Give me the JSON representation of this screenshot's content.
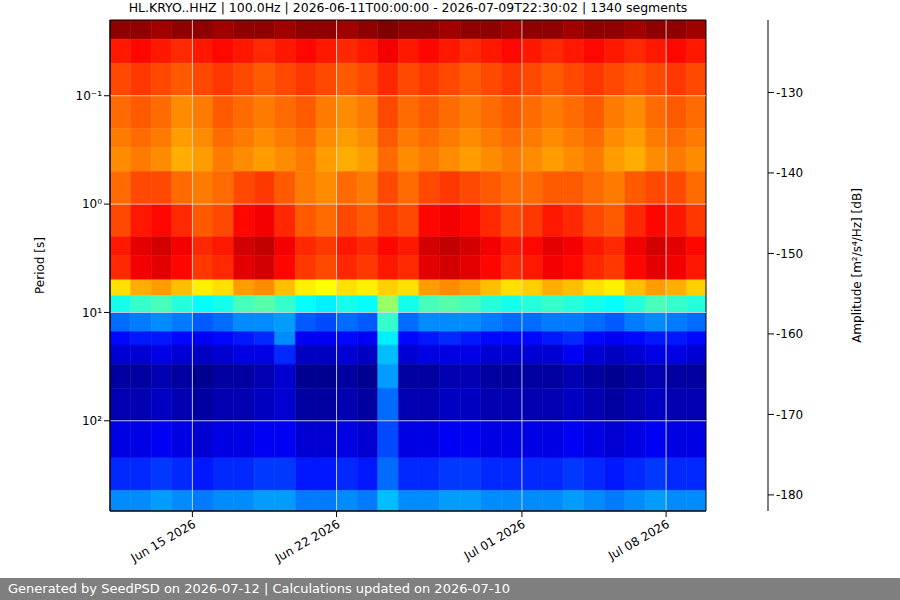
{
  "chart_data": {
    "type": "heatmap",
    "title": "HL.KRYO..HHZ | 100.0Hz | 2026-06-11T00:00:00 - 2026-07-09T22:30:02 | 1340 segments",
    "footer": "Generated by SeedPSD on 2026-07-12 | Calculations updated on 2026-07-10",
    "y_label": "Period [s]",
    "x": [
      "2026-06-11",
      "2026-06-12",
      "2026-06-13",
      "2026-06-14",
      "2026-06-15",
      "2026-06-16",
      "2026-06-17",
      "2026-06-18",
      "2026-06-19",
      "2026-06-20",
      "2026-06-21",
      "2026-06-22",
      "2026-06-23",
      "2026-06-24",
      "2026-06-25",
      "2026-06-26",
      "2026-06-27",
      "2026-06-28",
      "2026-06-29",
      "2026-06-30",
      "2026-07-01",
      "2026-07-02",
      "2026-07-03",
      "2026-07-04",
      "2026-07-05",
      "2026-07-06",
      "2026-07-07",
      "2026-07-08",
      "2026-07-09"
    ],
    "xlim": [
      "2026-06-11T00:00:00",
      "2026-07-09T22:30:02"
    ],
    "xticks": [
      {
        "value": "2026-06-15",
        "label": "Jun 15 2026"
      },
      {
        "value": "2026-06-22",
        "label": "Jun 22 2026"
      },
      {
        "value": "2026-07-01",
        "label": "Jul 01 2026"
      },
      {
        "value": "2026-07-08",
        "label": "Jul 08 2026"
      }
    ],
    "ylim": [
      0.02,
      680
    ],
    "yticks": [
      {
        "value": 0.1,
        "label": "10⁻¹"
      },
      {
        "value": 1,
        "label": "10⁰"
      },
      {
        "value": 10,
        "label": "10¹"
      },
      {
        "value": 100,
        "label": "10²"
      }
    ],
    "log": "y",
    "grid": true,
    "period_bins": [
      0.02,
      0.03,
      0.05,
      0.1,
      0.2,
      0.3,
      0.5,
      1,
      2,
      3,
      5,
      7,
      10,
      15,
      20,
      30,
      50,
      100,
      220,
      440,
      680
    ],
    "values": [
      [
        -122,
        -122,
        -123,
        -122,
        -122,
        -123,
        -122,
        -122,
        -123,
        -122,
        -122,
        -123,
        -122,
        -121,
        -122,
        -122,
        -123,
        -122,
        -122,
        -123,
        -122,
        -122,
        -123,
        -122,
        -122,
        -123,
        -122,
        -122,
        -123
      ],
      [
        -130,
        -129,
        -130,
        -131,
        -130,
        -129,
        -130,
        -131,
        -130,
        -129,
        -130,
        -131,
        -130,
        -128,
        -130,
        -129,
        -130,
        -131,
        -130,
        -129,
        -130,
        -131,
        -130,
        -129,
        -130,
        -131,
        -130,
        -129,
        -130
      ],
      [
        -133,
        -132,
        -133,
        -134,
        -133,
        -132,
        -133,
        -134,
        -133,
        -132,
        -133,
        -134,
        -133,
        -131,
        -133,
        -132,
        -133,
        -134,
        -133,
        -132,
        -133,
        -134,
        -133,
        -132,
        -133,
        -134,
        -133,
        -132,
        -133
      ],
      [
        -135,
        -134,
        -135,
        -137,
        -136,
        -134,
        -135,
        -136,
        -135,
        -134,
        -136,
        -137,
        -136,
        -133,
        -135,
        -134,
        -135,
        -136,
        -135,
        -134,
        -135,
        -136,
        -135,
        -134,
        -136,
        -137,
        -135,
        -134,
        -135
      ],
      [
        -136,
        -135,
        -136,
        -138,
        -137,
        -135,
        -136,
        -137,
        -136,
        -135,
        -137,
        -138,
        -137,
        -134,
        -136,
        -135,
        -136,
        -137,
        -136,
        -135,
        -136,
        -137,
        -136,
        -135,
        -137,
        -138,
        -136,
        -135,
        -136
      ],
      [
        -137,
        -136,
        -137,
        -139,
        -138,
        -136,
        -137,
        -138,
        -137,
        -136,
        -138,
        -139,
        -138,
        -135,
        -137,
        -136,
        -137,
        -138,
        -137,
        -136,
        -137,
        -138,
        -137,
        -136,
        -138,
        -139,
        -137,
        -136,
        -137
      ],
      [
        -135,
        -133,
        -133,
        -135,
        -136,
        -135,
        -133,
        -132,
        -134,
        -136,
        -137,
        -135,
        -136,
        -133,
        -135,
        -133,
        -132,
        -133,
        -134,
        -135,
        -135,
        -134,
        -134,
        -135,
        -136,
        -134,
        -133,
        -133,
        -135
      ],
      [
        -133,
        -130,
        -129,
        -131,
        -134,
        -133,
        -129,
        -128,
        -131,
        -134,
        -135,
        -133,
        -134,
        -132,
        -133,
        -129,
        -128,
        -129,
        -131,
        -133,
        -132,
        -130,
        -131,
        -133,
        -134,
        -131,
        -129,
        -130,
        -132
      ],
      [
        -130,
        -127,
        -126,
        -128,
        -131,
        -130,
        -126,
        -125,
        -128,
        -131,
        -132,
        -130,
        -131,
        -129,
        -130,
        -126,
        -125,
        -126,
        -128,
        -130,
        -129,
        -127,
        -128,
        -130,
        -131,
        -128,
        -126,
        -127,
        -129
      ],
      [
        -131,
        -128,
        -127,
        -129,
        -132,
        -131,
        -127,
        -126,
        -129,
        -132,
        -133,
        -131,
        -132,
        -130,
        -131,
        -127,
        -126,
        -127,
        -129,
        -131,
        -130,
        -128,
        -129,
        -131,
        -132,
        -129,
        -127,
        -128,
        -130
      ],
      [
        -142,
        -139,
        -138,
        -140,
        -143,
        -142,
        -138,
        -137,
        -140,
        -143,
        -144,
        -142,
        -143,
        -141,
        -142,
        -138,
        -137,
        -138,
        -140,
        -142,
        -141,
        -139,
        -140,
        -142,
        -143,
        -140,
        -138,
        -139,
        -141
      ],
      [
        -158,
        -156,
        -155,
        -157,
        -159,
        -158,
        -155,
        -154,
        -156,
        -159,
        -160,
        -158,
        -159,
        -150,
        -158,
        -155,
        -154,
        -155,
        -157,
        -158,
        -157,
        -156,
        -157,
        -158,
        -159,
        -157,
        -155,
        -156,
        -157
      ],
      [
        -168,
        -167,
        -166,
        -167,
        -169,
        -168,
        -166,
        -166,
        -165,
        -169,
        -170,
        -168,
        -169,
        -156,
        -168,
        -166,
        -166,
        -166,
        -167,
        -168,
        -168,
        -167,
        -167,
        -168,
        -169,
        -167,
        -166,
        -167,
        -168
      ],
      [
        -174,
        -173,
        -173,
        -174,
        -175,
        -174,
        -173,
        -172,
        -166,
        -175,
        -175,
        -174,
        -175,
        -160,
        -174,
        -173,
        -172,
        -173,
        -174,
        -174,
        -174,
        -173,
        -172,
        -174,
        -175,
        -174,
        -173,
        -173,
        -174
      ],
      [
        -177,
        -177,
        -176,
        -177,
        -178,
        -177,
        -176,
        -176,
        -172,
        -178,
        -178,
        -177,
        -178,
        -163,
        -177,
        -176,
        -176,
        -176,
        -177,
        -177,
        -177,
        -177,
        -175,
        -177,
        -178,
        -177,
        -176,
        -176,
        -177
      ],
      [
        -180,
        -180,
        -179,
        -180,
        -181,
        -180,
        -180,
        -179,
        -177,
        -181,
        -181,
        -180,
        -181,
        -165,
        -180,
        -180,
        -179,
        -179,
        -180,
        -180,
        -180,
        -180,
        -179,
        -180,
        -181,
        -180,
        -179,
        -180,
        -180
      ],
      [
        -179,
        -179,
        -178,
        -179,
        -180,
        -179,
        -179,
        -178,
        -177,
        -180,
        -180,
        -179,
        -180,
        -168,
        -179,
        -179,
        -178,
        -178,
        -179,
        -179,
        -179,
        -179,
        -178,
        -179,
        -180,
        -179,
        -178,
        -179,
        -179
      ],
      [
        -176,
        -176,
        -175,
        -176,
        -177,
        -176,
        -176,
        -175,
        -175,
        -177,
        -177,
        -176,
        -177,
        -170,
        -176,
        -176,
        -175,
        -175,
        -176,
        -176,
        -176,
        -176,
        -175,
        -176,
        -177,
        -176,
        -175,
        -176,
        -176
      ],
      [
        -172,
        -172,
        -171,
        -172,
        -173,
        -172,
        -172,
        -171,
        -171,
        -173,
        -173,
        -172,
        -173,
        -168,
        -172,
        -172,
        -171,
        -171,
        -172,
        -172,
        -172,
        -172,
        -171,
        -172,
        -173,
        -172,
        -171,
        -172,
        -172
      ],
      [
        -166,
        -166,
        -165,
        -166,
        -167,
        -166,
        -166,
        -165,
        -165,
        -167,
        -167,
        -166,
        -167,
        -163,
        -166,
        -166,
        -165,
        -165,
        -166,
        -166,
        -166,
        -166,
        -165,
        -166,
        -167,
        -166,
        -165,
        -166,
        -166
      ]
    ],
    "colorbar": {
      "label": "Amplitude [m²/s⁴/Hz] [dB]",
      "range": [
        -182,
        -121
      ],
      "ticks": [
        -180,
        -170,
        -160,
        -150,
        -140,
        -130
      ]
    }
  }
}
